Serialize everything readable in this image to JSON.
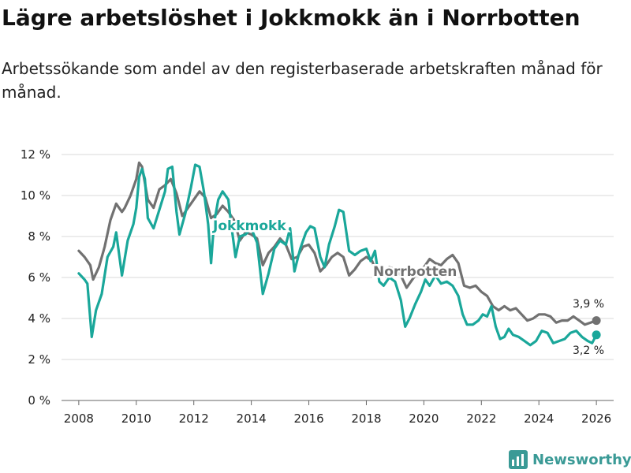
{
  "header": {
    "title": "Lägre arbetslöshet i Jokkmokk än i Norrbotten",
    "subtitle": "Arbetssökande som andel av den registerbaserade arbetskraften månad för månad."
  },
  "brand": {
    "name": "Newsworthy",
    "color": "#3a9a96"
  },
  "chart_data": {
    "type": "line",
    "title": "Lägre arbetslöshet i Jokkmokk än i Norrbotten",
    "subtitle": "Arbetssökande som andel av den registerbaserade arbetskraften månad för månad.",
    "xlabel": "",
    "ylabel": "",
    "xlim": [
      2007.4,
      2026.6
    ],
    "ylim": [
      0,
      12
    ],
    "grid": true,
    "y_ticks": [
      0,
      2,
      4,
      6,
      8,
      10,
      12
    ],
    "y_tick_labels": [
      "0 %",
      "2 %",
      "4 %",
      "6 %",
      "8 %",
      "10 %",
      "12 %"
    ],
    "x_ticks": [
      2008,
      2010,
      2012,
      2014,
      2016,
      2018,
      2020,
      2022,
      2024,
      2026
    ],
    "x_tick_labels": [
      "2008",
      "2010",
      "2012",
      "2014",
      "2016",
      "2018",
      "2020",
      "2022",
      "2024",
      "2026"
    ],
    "series": [
      {
        "name": "Norrbotten",
        "color": "#717171",
        "end_label": "3,9 %",
        "points": [
          [
            2008.0,
            7.3
          ],
          [
            2008.2,
            7.0
          ],
          [
            2008.4,
            6.6
          ],
          [
            2008.5,
            5.9
          ],
          [
            2008.7,
            6.5
          ],
          [
            2008.9,
            7.5
          ],
          [
            2009.1,
            8.8
          ],
          [
            2009.3,
            9.6
          ],
          [
            2009.5,
            9.2
          ],
          [
            2009.6,
            9.4
          ],
          [
            2009.8,
            10.0
          ],
          [
            2010.0,
            10.8
          ],
          [
            2010.1,
            11.6
          ],
          [
            2010.2,
            11.4
          ],
          [
            2010.4,
            9.8
          ],
          [
            2010.6,
            9.4
          ],
          [
            2010.8,
            10.3
          ],
          [
            2011.0,
            10.5
          ],
          [
            2011.2,
            10.8
          ],
          [
            2011.4,
            10.1
          ],
          [
            2011.6,
            9.0
          ],
          [
            2011.8,
            9.4
          ],
          [
            2012.0,
            9.8
          ],
          [
            2012.2,
            10.2
          ],
          [
            2012.4,
            9.9
          ],
          [
            2012.6,
            8.9
          ],
          [
            2012.8,
            9.1
          ],
          [
            2013.0,
            9.5
          ],
          [
            2013.2,
            9.2
          ],
          [
            2013.4,
            8.8
          ],
          [
            2013.6,
            7.8
          ],
          [
            2013.8,
            8.2
          ],
          [
            2014.0,
            8.1
          ],
          [
            2014.2,
            7.9
          ],
          [
            2014.4,
            6.6
          ],
          [
            2014.6,
            7.2
          ],
          [
            2014.8,
            7.5
          ],
          [
            2015.0,
            7.9
          ],
          [
            2015.2,
            7.6
          ],
          [
            2015.4,
            6.9
          ],
          [
            2015.6,
            7.0
          ],
          [
            2015.8,
            7.5
          ],
          [
            2016.0,
            7.6
          ],
          [
            2016.2,
            7.2
          ],
          [
            2016.4,
            6.3
          ],
          [
            2016.6,
            6.6
          ],
          [
            2016.8,
            7.0
          ],
          [
            2017.0,
            7.2
          ],
          [
            2017.2,
            7.0
          ],
          [
            2017.4,
            6.1
          ],
          [
            2017.6,
            6.4
          ],
          [
            2017.8,
            6.8
          ],
          [
            2018.0,
            7.0
          ],
          [
            2018.2,
            6.8
          ],
          [
            2018.4,
            6.1
          ],
          [
            2018.6,
            6.2
          ],
          [
            2018.8,
            6.5
          ],
          [
            2019.0,
            6.4
          ],
          [
            2019.2,
            6.1
          ],
          [
            2019.4,
            5.5
          ],
          [
            2019.6,
            5.9
          ],
          [
            2019.8,
            6.3
          ],
          [
            2020.0,
            6.5
          ],
          [
            2020.2,
            6.9
          ],
          [
            2020.4,
            6.7
          ],
          [
            2020.6,
            6.6
          ],
          [
            2020.8,
            6.9
          ],
          [
            2021.0,
            7.1
          ],
          [
            2021.2,
            6.7
          ],
          [
            2021.4,
            5.6
          ],
          [
            2021.6,
            5.5
          ],
          [
            2021.8,
            5.6
          ],
          [
            2022.0,
            5.3
          ],
          [
            2022.2,
            5.1
          ],
          [
            2022.4,
            4.6
          ],
          [
            2022.6,
            4.4
          ],
          [
            2022.8,
            4.6
          ],
          [
            2023.0,
            4.4
          ],
          [
            2023.2,
            4.5
          ],
          [
            2023.4,
            4.2
          ],
          [
            2023.6,
            3.9
          ],
          [
            2023.8,
            4.0
          ],
          [
            2024.0,
            4.2
          ],
          [
            2024.2,
            4.2
          ],
          [
            2024.4,
            4.1
          ],
          [
            2024.6,
            3.8
          ],
          [
            2024.8,
            3.9
          ],
          [
            2025.0,
            3.9
          ],
          [
            2025.2,
            4.1
          ],
          [
            2025.4,
            3.9
          ],
          [
            2025.6,
            3.7
          ],
          [
            2025.8,
            3.8
          ],
          [
            2026.0,
            3.9
          ]
        ]
      },
      {
        "name": "Jokkmokk",
        "color": "#1aa79a",
        "end_label": "3,2 %",
        "points": [
          [
            2008.0,
            6.2
          ],
          [
            2008.2,
            5.9
          ],
          [
            2008.3,
            5.7
          ],
          [
            2008.45,
            3.1
          ],
          [
            2008.6,
            4.4
          ],
          [
            2008.8,
            5.2
          ],
          [
            2009.0,
            7.0
          ],
          [
            2009.2,
            7.5
          ],
          [
            2009.3,
            8.2
          ],
          [
            2009.5,
            6.1
          ],
          [
            2009.7,
            7.8
          ],
          [
            2009.9,
            8.6
          ],
          [
            2010.0,
            9.4
          ],
          [
            2010.1,
            10.9
          ],
          [
            2010.2,
            11.3
          ],
          [
            2010.3,
            10.8
          ],
          [
            2010.4,
            8.9
          ],
          [
            2010.6,
            8.4
          ],
          [
            2010.8,
            9.3
          ],
          [
            2011.0,
            10.2
          ],
          [
            2011.1,
            11.3
          ],
          [
            2011.25,
            11.4
          ],
          [
            2011.4,
            9.2
          ],
          [
            2011.5,
            8.1
          ],
          [
            2011.7,
            9.1
          ],
          [
            2011.9,
            10.4
          ],
          [
            2012.05,
            11.5
          ],
          [
            2012.2,
            11.4
          ],
          [
            2012.35,
            10.2
          ],
          [
            2012.5,
            8.6
          ],
          [
            2012.6,
            6.7
          ],
          [
            2012.7,
            8.6
          ],
          [
            2012.85,
            9.8
          ],
          [
            2013.0,
            10.2
          ],
          [
            2013.2,
            9.8
          ],
          [
            2013.3,
            8.6
          ],
          [
            2013.45,
            7.0
          ],
          [
            2013.6,
            8.0
          ],
          [
            2013.8,
            8.1
          ],
          [
            2014.0,
            8.4
          ],
          [
            2014.2,
            7.7
          ],
          [
            2014.4,
            5.2
          ],
          [
            2014.6,
            6.2
          ],
          [
            2014.8,
            7.4
          ],
          [
            2015.0,
            7.8
          ],
          [
            2015.2,
            7.6
          ],
          [
            2015.35,
            8.4
          ],
          [
            2015.5,
            6.3
          ],
          [
            2015.7,
            7.4
          ],
          [
            2015.9,
            8.2
          ],
          [
            2016.05,
            8.5
          ],
          [
            2016.2,
            8.4
          ],
          [
            2016.4,
            7.0
          ],
          [
            2016.55,
            6.5
          ],
          [
            2016.7,
            7.6
          ],
          [
            2016.9,
            8.5
          ],
          [
            2017.05,
            9.3
          ],
          [
            2017.2,
            9.2
          ],
          [
            2017.4,
            7.3
          ],
          [
            2017.6,
            7.1
          ],
          [
            2017.8,
            7.3
          ],
          [
            2018.0,
            7.4
          ],
          [
            2018.15,
            6.8
          ],
          [
            2018.3,
            7.3
          ],
          [
            2018.45,
            5.8
          ],
          [
            2018.6,
            5.6
          ],
          [
            2018.8,
            6.0
          ],
          [
            2019.0,
            5.8
          ],
          [
            2019.2,
            4.9
          ],
          [
            2019.35,
            3.6
          ],
          [
            2019.5,
            4.0
          ],
          [
            2019.7,
            4.7
          ],
          [
            2019.9,
            5.3
          ],
          [
            2020.05,
            5.9
          ],
          [
            2020.2,
            5.6
          ],
          [
            2020.4,
            6.1
          ],
          [
            2020.6,
            5.7
          ],
          [
            2020.8,
            5.8
          ],
          [
            2021.0,
            5.6
          ],
          [
            2021.2,
            5.1
          ],
          [
            2021.35,
            4.2
          ],
          [
            2021.5,
            3.7
          ],
          [
            2021.7,
            3.7
          ],
          [
            2021.9,
            3.9
          ],
          [
            2022.05,
            4.2
          ],
          [
            2022.2,
            4.1
          ],
          [
            2022.35,
            4.6
          ],
          [
            2022.5,
            3.6
          ],
          [
            2022.65,
            3.0
          ],
          [
            2022.8,
            3.1
          ],
          [
            2022.95,
            3.5
          ],
          [
            2023.1,
            3.2
          ],
          [
            2023.3,
            3.1
          ],
          [
            2023.5,
            2.9
          ],
          [
            2023.7,
            2.7
          ],
          [
            2023.9,
            2.9
          ],
          [
            2024.1,
            3.4
          ],
          [
            2024.3,
            3.3
          ],
          [
            2024.5,
            2.8
          ],
          [
            2024.7,
            2.9
          ],
          [
            2024.9,
            3.0
          ],
          [
            2025.1,
            3.3
          ],
          [
            2025.3,
            3.4
          ],
          [
            2025.5,
            3.1
          ],
          [
            2025.7,
            2.9
          ],
          [
            2025.85,
            2.8
          ],
          [
            2026.0,
            3.2
          ]
        ]
      }
    ]
  }
}
